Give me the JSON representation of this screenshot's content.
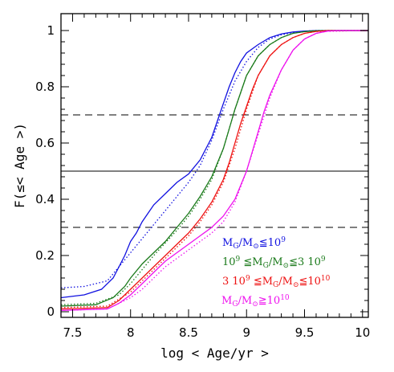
{
  "chart_data": {
    "type": "line",
    "xlabel": "log < Age/yr >",
    "ylabel": "F(≤< Age >)",
    "xlim": [
      7.4,
      10.05
    ],
    "ylim": [
      -0.02,
      1.06
    ],
    "xticks": [
      7.5,
      8,
      8.5,
      9,
      9.5,
      10
    ],
    "xtick_labels": [
      "7.5",
      "8",
      "8.5",
      "9",
      "9.5",
      "10"
    ],
    "yticks": [
      0,
      0.2,
      0.4,
      0.6,
      0.8,
      1
    ],
    "ytick_labels": [
      "0",
      "0.2",
      "0.4",
      "0.6",
      "0.8",
      "1"
    ],
    "grid": false,
    "reference_lines": [
      {
        "y": 0.5,
        "style": "solid"
      },
      {
        "y": 0.7,
        "style": "dashed"
      },
      {
        "y": 0.3,
        "style": "dashed"
      }
    ],
    "legend_position": "bottom-right",
    "series": [
      {
        "color": "#1010e0",
        "legend_parts": [
          {
            "t": "M"
          },
          {
            "t": "G",
            "sub": true
          },
          {
            "t": "/M"
          },
          {
            "t": "⊙",
            "sub": true
          },
          {
            "t": "≦10"
          },
          {
            "t": "9",
            "sup": true
          }
        ],
        "x": [
          7.4,
          7.6,
          7.75,
          7.85,
          7.9,
          7.95,
          8.0,
          8.05,
          8.1,
          8.15,
          8.2,
          8.3,
          8.4,
          8.5,
          8.6,
          8.7,
          8.75,
          8.8,
          8.85,
          8.9,
          8.95,
          9.0,
          9.1,
          9.2,
          9.3,
          9.4,
          9.5,
          9.6,
          9.7,
          10.05
        ],
        "y": [
          0.05,
          0.06,
          0.08,
          0.12,
          0.16,
          0.2,
          0.25,
          0.28,
          0.32,
          0.35,
          0.38,
          0.42,
          0.46,
          0.49,
          0.54,
          0.62,
          0.68,
          0.74,
          0.8,
          0.85,
          0.89,
          0.92,
          0.95,
          0.975,
          0.988,
          0.995,
          0.998,
          1.0,
          1.0,
          1.0
        ],
        "dotted_x": [
          7.4,
          7.6,
          7.8,
          7.9,
          8.0,
          8.1,
          8.2,
          8.3,
          8.4,
          8.5,
          8.6,
          8.7,
          8.8,
          8.9,
          9.0,
          9.1,
          9.2,
          9.3,
          9.4,
          9.5,
          9.6,
          10.05
        ],
        "dotted_y": [
          0.085,
          0.09,
          0.11,
          0.16,
          0.21,
          0.26,
          0.31,
          0.36,
          0.41,
          0.46,
          0.52,
          0.61,
          0.72,
          0.82,
          0.89,
          0.94,
          0.97,
          0.985,
          0.993,
          0.998,
          1.0,
          1.0
        ]
      },
      {
        "color": "#1a7a1a",
        "legend_parts": [
          {
            "t": "10"
          },
          {
            "t": "9",
            "sup": true
          },
          {
            "t": " ≦M"
          },
          {
            "t": "G",
            "sub": true
          },
          {
            "t": "/M"
          },
          {
            "t": "⊙",
            "sub": true
          },
          {
            "t": "≦3 10"
          },
          {
            "t": "9",
            "sup": true
          }
        ],
        "x": [
          7.4,
          7.7,
          7.85,
          7.95,
          8.0,
          8.1,
          8.2,
          8.3,
          8.4,
          8.5,
          8.6,
          8.7,
          8.75,
          8.8,
          8.85,
          8.9,
          8.95,
          9.0,
          9.1,
          9.2,
          9.3,
          9.4,
          9.5,
          9.6,
          9.7,
          10.05
        ],
        "y": [
          0.02,
          0.025,
          0.05,
          0.09,
          0.12,
          0.17,
          0.21,
          0.25,
          0.3,
          0.35,
          0.41,
          0.48,
          0.53,
          0.58,
          0.65,
          0.72,
          0.78,
          0.84,
          0.91,
          0.95,
          0.975,
          0.99,
          0.996,
          0.999,
          1.0,
          1.0
        ],
        "dotted_x": [
          7.4,
          7.7,
          7.9,
          8.0,
          8.1,
          8.2,
          8.3,
          8.4,
          8.5,
          8.6,
          8.7,
          8.8,
          8.9,
          9.0,
          9.1,
          9.2,
          9.3,
          9.4,
          9.5,
          9.6,
          10.05
        ],
        "dotted_y": [
          0.025,
          0.03,
          0.06,
          0.1,
          0.15,
          0.2,
          0.245,
          0.29,
          0.34,
          0.4,
          0.47,
          0.58,
          0.72,
          0.84,
          0.91,
          0.95,
          0.975,
          0.99,
          0.996,
          1.0,
          1.0
        ]
      },
      {
        "color": "#ee1111",
        "legend_parts": [
          {
            "t": "3 10"
          },
          {
            "t": "9",
            "sup": true
          },
          {
            "t": " ≦M"
          },
          {
            "t": "G",
            "sub": true
          },
          {
            "t": "/M"
          },
          {
            "t": "⊙",
            "sub": true
          },
          {
            "t": "≦10"
          },
          {
            "t": "10",
            "sup": true
          }
        ],
        "x": [
          7.4,
          7.8,
          7.9,
          8.0,
          8.1,
          8.2,
          8.3,
          8.4,
          8.5,
          8.6,
          8.7,
          8.8,
          8.85,
          8.9,
          8.95,
          9.0,
          9.05,
          9.1,
          9.2,
          9.3,
          9.4,
          9.5,
          9.6,
          9.7,
          10.05
        ],
        "y": [
          0.01,
          0.015,
          0.04,
          0.08,
          0.12,
          0.16,
          0.2,
          0.24,
          0.28,
          0.33,
          0.39,
          0.47,
          0.53,
          0.6,
          0.67,
          0.73,
          0.79,
          0.84,
          0.91,
          0.95,
          0.975,
          0.99,
          0.997,
          1.0,
          1.0
        ],
        "dotted_x": [
          7.4,
          7.8,
          8.0,
          8.1,
          8.2,
          8.3,
          8.4,
          8.5,
          8.6,
          8.7,
          8.8,
          8.9,
          9.0,
          9.1,
          9.2,
          9.3,
          9.4,
          9.5,
          9.6,
          10.05
        ],
        "dotted_y": [
          0.015,
          0.02,
          0.07,
          0.11,
          0.15,
          0.19,
          0.23,
          0.27,
          0.32,
          0.38,
          0.46,
          0.58,
          0.72,
          0.84,
          0.91,
          0.95,
          0.975,
          0.99,
          0.997,
          1.0
        ]
      },
      {
        "color": "#ee11ee",
        "legend_parts": [
          {
            "t": "M"
          },
          {
            "t": "G",
            "sub": true
          },
          {
            "t": "/M"
          },
          {
            "t": "⊙",
            "sub": true
          },
          {
            "t": "≧10"
          },
          {
            "t": "10",
            "sup": true
          }
        ],
        "x": [
          7.4,
          7.8,
          7.9,
          8.0,
          8.1,
          8.2,
          8.3,
          8.4,
          8.5,
          8.6,
          8.7,
          8.8,
          8.9,
          9.0,
          9.05,
          9.1,
          9.15,
          9.2,
          9.3,
          9.4,
          9.5,
          9.6,
          9.7,
          9.8,
          10.05
        ],
        "y": [
          0.005,
          0.01,
          0.03,
          0.06,
          0.1,
          0.14,
          0.18,
          0.21,
          0.24,
          0.27,
          0.3,
          0.34,
          0.4,
          0.5,
          0.57,
          0.64,
          0.71,
          0.77,
          0.86,
          0.93,
          0.97,
          0.99,
          0.998,
          1.0,
          1.0
        ],
        "dotted_x": [
          7.4,
          7.8,
          8.0,
          8.1,
          8.2,
          8.3,
          8.4,
          8.5,
          8.6,
          8.7,
          8.8,
          8.9,
          9.0,
          9.1,
          9.2,
          9.3,
          9.4,
          9.5,
          9.6,
          9.7,
          10.05
        ],
        "dotted_y": [
          0.005,
          0.01,
          0.05,
          0.08,
          0.12,
          0.16,
          0.19,
          0.22,
          0.25,
          0.28,
          0.32,
          0.39,
          0.5,
          0.63,
          0.76,
          0.86,
          0.93,
          0.97,
          0.99,
          0.998,
          1.0
        ]
      }
    ]
  }
}
